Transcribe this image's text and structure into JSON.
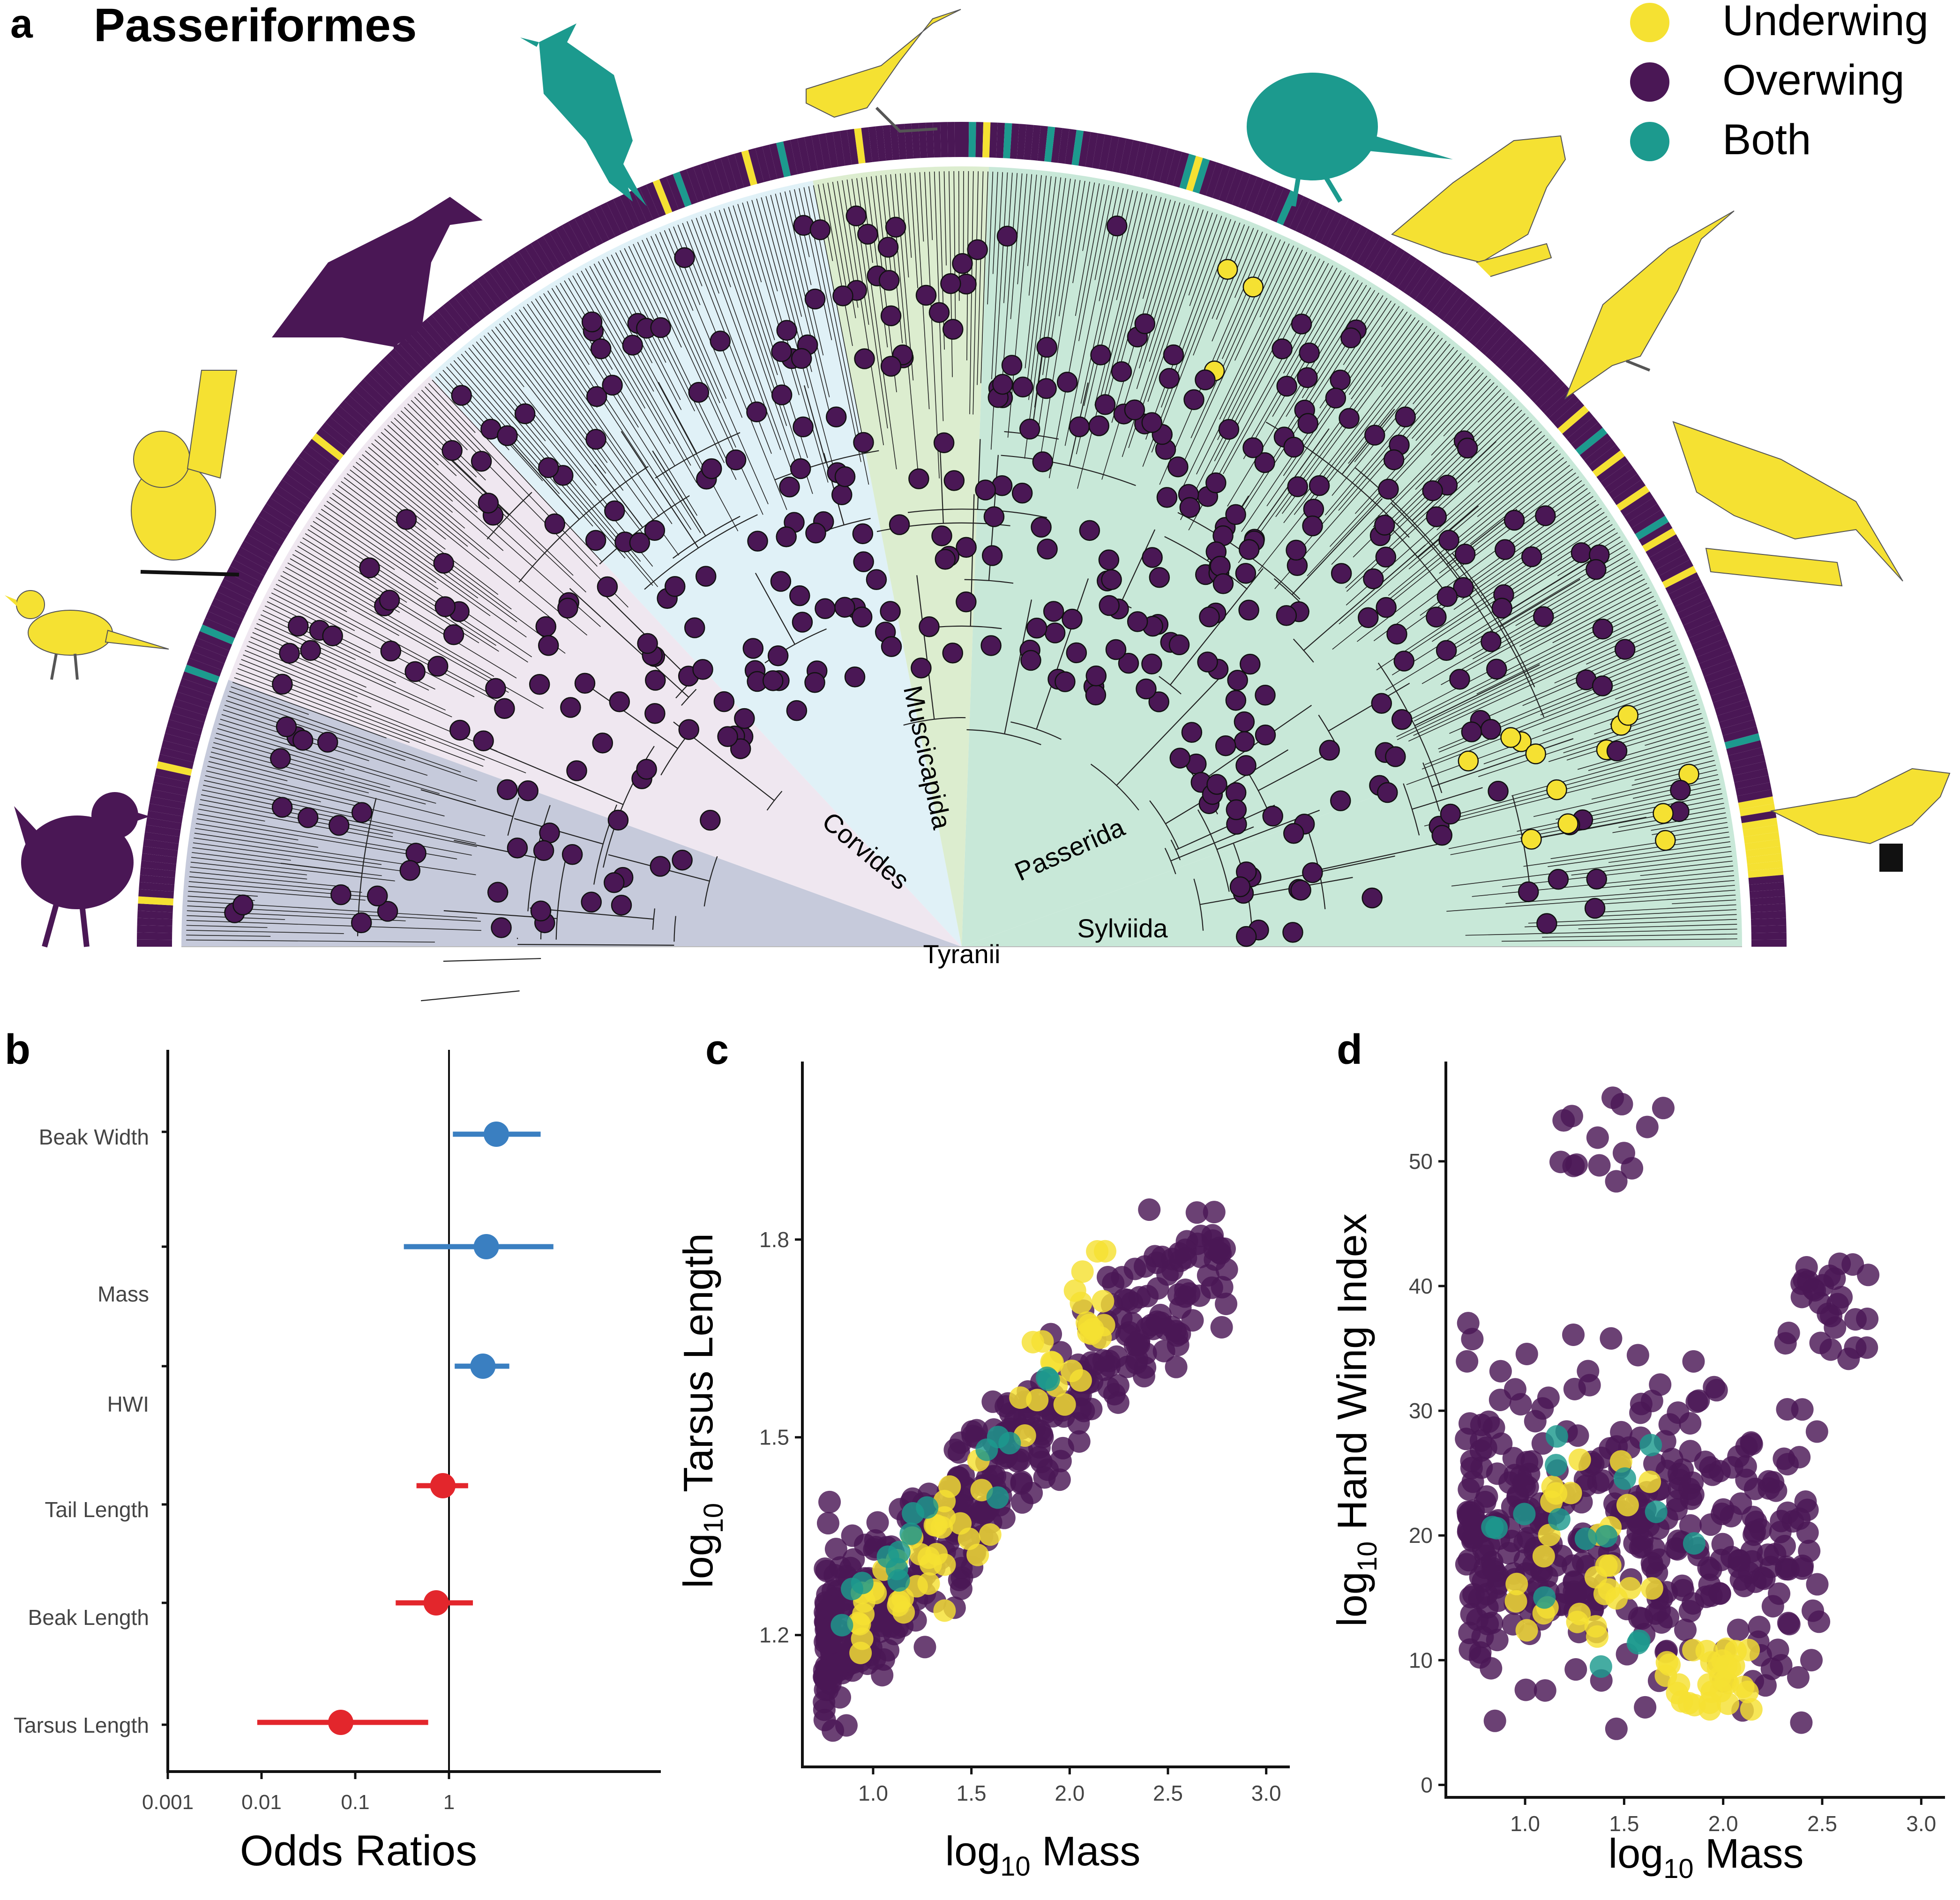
{
  "panel_a": {
    "label": "a",
    "title": "Passeriformes",
    "legend": [
      {
        "label": "Underwing",
        "color": "#F5E132"
      },
      {
        "label": "Overwing",
        "color": "#4A1755"
      },
      {
        "label": "Both",
        "color": "#1C9A8E"
      }
    ],
    "clades": [
      {
        "name": "Tyranii",
        "color": "#C6CADB"
      },
      {
        "name": "Corvides",
        "color": "#EFE7F0"
      },
      {
        "name": "Muscicapida",
        "color": "#E0F1F7"
      },
      {
        "name": "Passerida",
        "color": "#DCEDCF"
      },
      {
        "name": "Sylviida",
        "color": "#C8E8D8"
      }
    ],
    "silhouette_icons": [
      "wren-silhouette-icon",
      "pipit-silhouette-icon",
      "babbler-silhouette-icon",
      "crow-silhouette-icon",
      "cardinal-silhouette-icon",
      "warbler-silhouette-icon",
      "finch-silhouette-icon",
      "flycatcher-silhouette-icon",
      "oriole-silhouette-icon",
      "sunbird-silhouette-icon",
      "weaver-silhouette-icon"
    ]
  },
  "chart_data": [
    {
      "panel": "b",
      "type": "forest",
      "title": "",
      "xlabel": "Odds Ratios",
      "ylabel": "",
      "xscale": "log10",
      "xlim": [
        0.001,
        100
      ],
      "xticks": [
        {
          "value": 0.001,
          "label": "0.001"
        },
        {
          "value": 0.01,
          "label": "0.01"
        },
        {
          "value": 0.1,
          "label": "0.1"
        },
        {
          "value": 1,
          "label": "1"
        }
      ],
      "reference_line": 1,
      "rows": [
        {
          "label": "Beak Width",
          "estimate": 3.2,
          "low": 1.1,
          "high": 9.5,
          "color": "#3A7FC1",
          "slot": 0
        },
        {
          "label": "Mass",
          "estimate": 2.5,
          "low": 0.33,
          "high": 13.0,
          "color": "#3A7FC1",
          "slot": 1
        },
        {
          "label": "HWI",
          "estimate": 2.3,
          "low": 1.15,
          "high": 4.4,
          "color": "#3A7FC1",
          "slot": 2
        },
        {
          "label": "Tail Length",
          "estimate": 0.86,
          "low": 0.45,
          "high": 1.6,
          "color": "#E3262C",
          "slot": 3
        },
        {
          "label": "Beak Length",
          "estimate": 0.73,
          "low": 0.27,
          "high": 1.8,
          "color": "#E3262C",
          "slot": 4
        },
        {
          "label": "Tarsus Length",
          "estimate": 0.07,
          "low": 0.009,
          "high": 0.6,
          "color": "#E3262C",
          "slot": 5
        }
      ]
    },
    {
      "panel": "c",
      "type": "scatter",
      "title": "",
      "xlabel": "log",
      "xlabel_sub": "10",
      "xlabel_rest": " Mass",
      "ylabel": "log",
      "ylabel_sub": "10",
      "ylabel_rest": " Tarsus Length",
      "xlim": [
        0.64,
        3.12
      ],
      "ylim": [
        1.0,
        2.07
      ],
      "xticks": [
        "1.0",
        "1.5",
        "2.0",
        "2.5",
        "3.0"
      ],
      "yticks": [
        "1.2",
        "1.5",
        "1.8"
      ],
      "series": [
        {
          "name": "Overwing",
          "color": "#4A1755",
          "n": 430,
          "seed": 11
        },
        {
          "name": "Underwing",
          "color": "#F5E132",
          "n": 60,
          "seed": 23
        },
        {
          "name": "Both",
          "color": "#1C9A8E",
          "n": 16,
          "seed": 37
        }
      ]
    },
    {
      "panel": "d",
      "type": "scatter",
      "title": "",
      "xlabel": "log",
      "xlabel_sub": "10",
      "xlabel_rest": " Mass",
      "ylabel": "log",
      "ylabel_sub": "10",
      "ylabel_rest": " Hand Wing Index",
      "xlim": [
        0.6,
        3.12
      ],
      "ylim": [
        -1,
        58
      ],
      "xticks": [
        "1.0",
        "1.5",
        "2.0",
        "2.5",
        "3.0"
      ],
      "yticks": [
        "0",
        "10",
        "20",
        "30",
        "40",
        "50"
      ],
      "series": [
        {
          "name": "Overwing",
          "color": "#4A1755",
          "n": 430,
          "seed": 53
        },
        {
          "name": "Underwing",
          "color": "#F5E132",
          "n": 60,
          "seed": 71
        },
        {
          "name": "Both",
          "color": "#1C9A8E",
          "n": 16,
          "seed": 89
        }
      ]
    }
  ]
}
